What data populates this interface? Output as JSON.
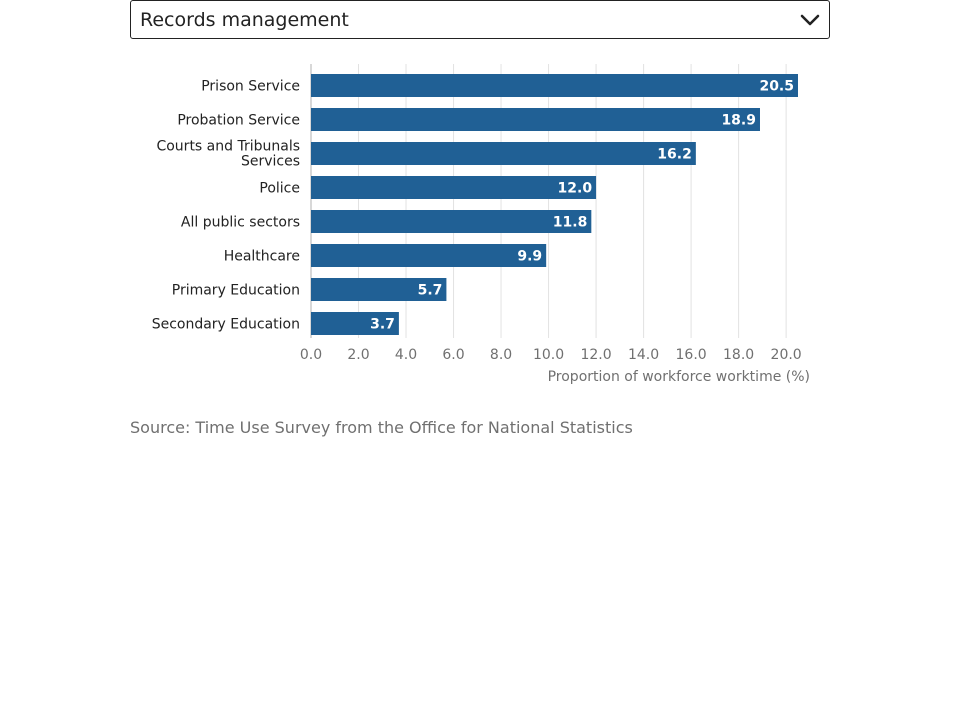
{
  "selector": {
    "selected_value": "Records management",
    "icon": "chevron-down-icon"
  },
  "chart_data": {
    "type": "bar",
    "orientation": "horizontal",
    "categories": [
      "Prison Service",
      "Probation Service",
      "Courts and Tribunals Services",
      "Police",
      "All public sectors",
      "Healthcare",
      "Primary Education",
      "Secondary Education"
    ],
    "values": [
      20.5,
      18.9,
      16.2,
      12.0,
      11.8,
      9.9,
      5.7,
      3.7
    ],
    "value_labels": [
      "20.5",
      "18.9",
      "16.2",
      "12.0",
      "11.8",
      "9.9",
      "5.7",
      "3.7"
    ],
    "xlabel": "Proportion of workforce worktime (%)",
    "xlim": [
      0,
      20.5
    ],
    "xticks": [
      "0.0",
      "2.0",
      "4.0",
      "6.0",
      "8.0",
      "10.0",
      "12.0",
      "14.0",
      "16.0",
      "18.0",
      "20.0"
    ],
    "grid": true,
    "bar_color": "#206095",
    "label_color": "#ffffff"
  },
  "source": "Source: Time Use Survey from the Office for National Statistics"
}
